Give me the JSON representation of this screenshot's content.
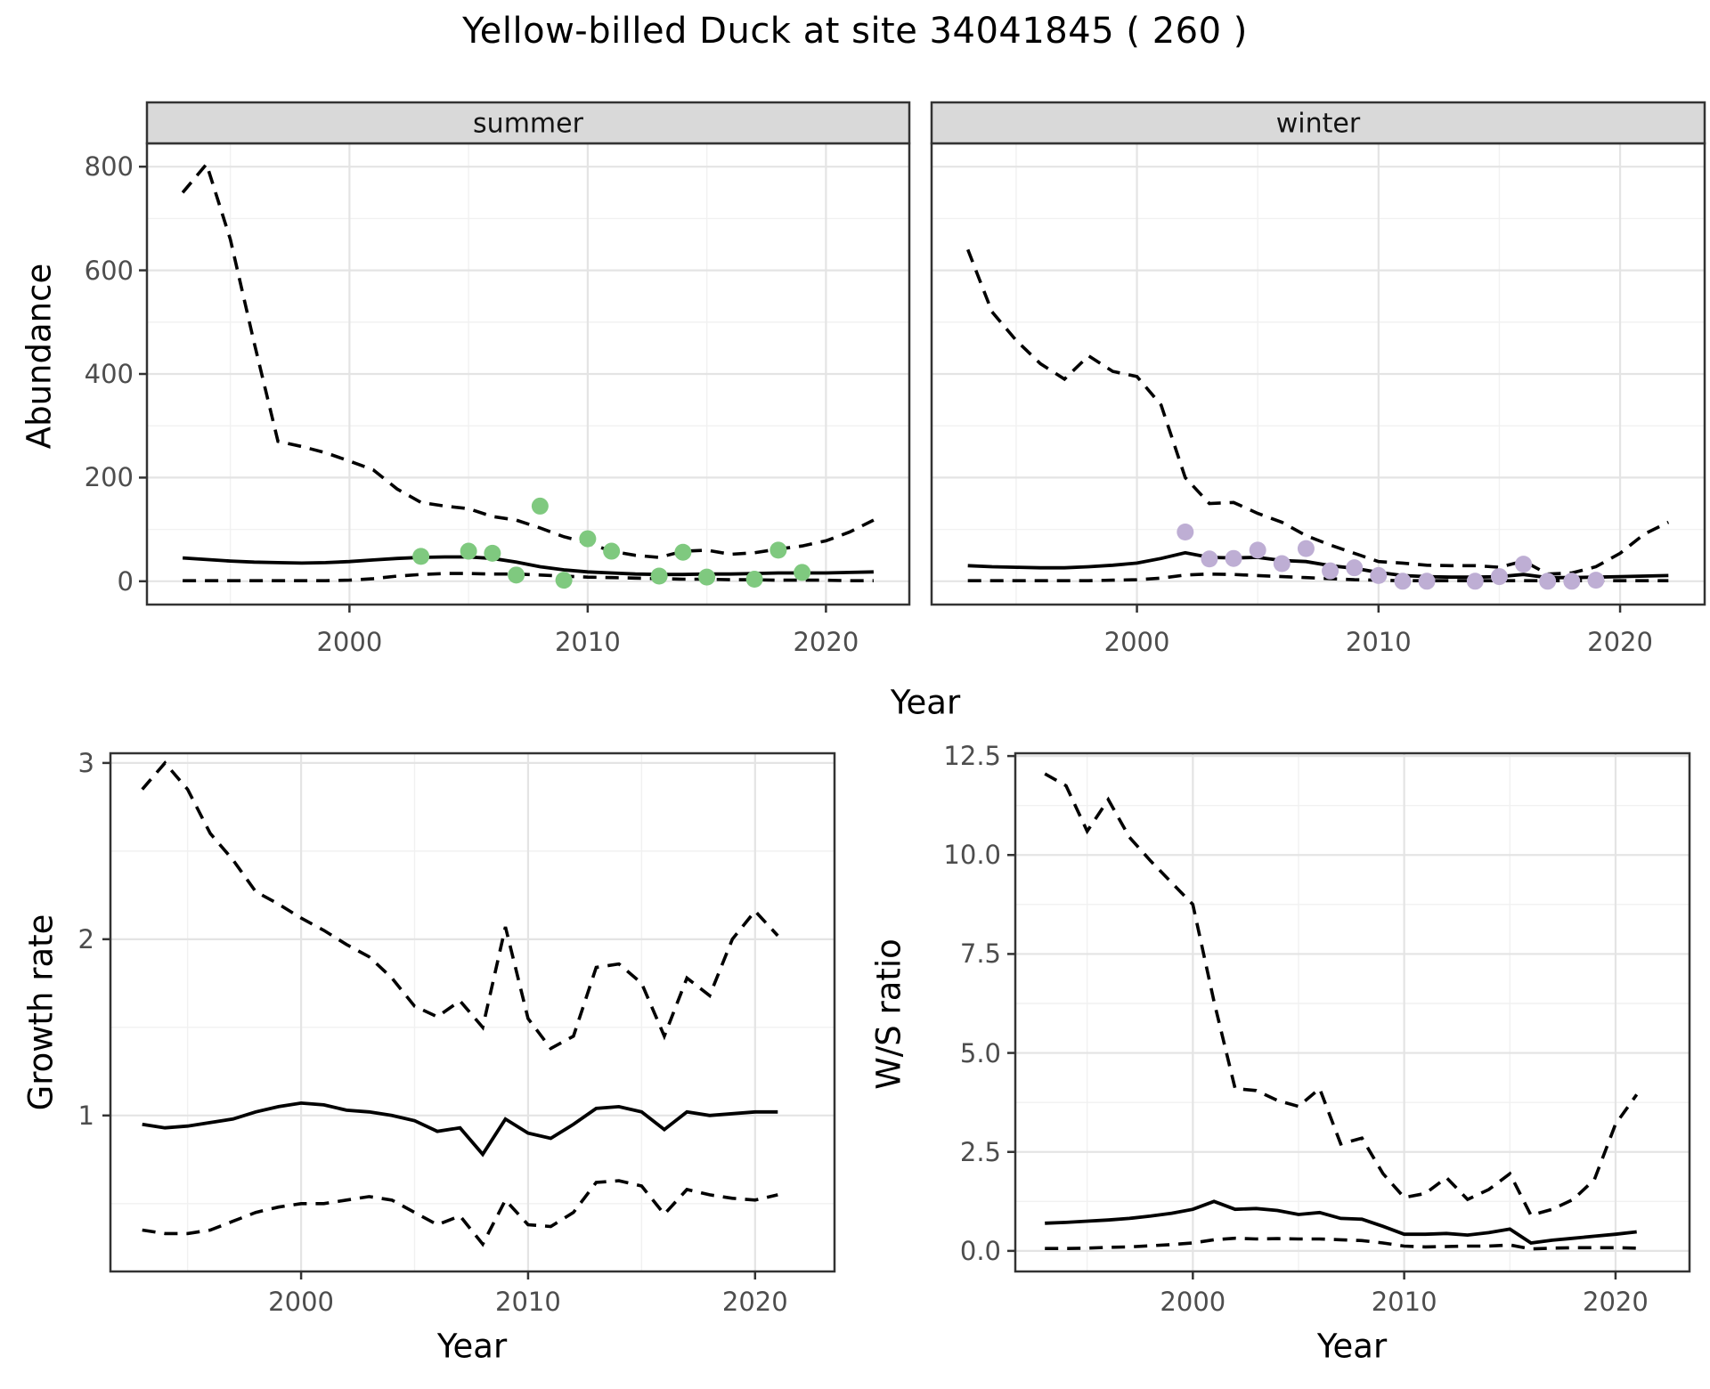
{
  "title": "Yellow-billed Duck at site 34041845 ( 260 )",
  "colors": {
    "summer_points": "#7fc97f",
    "winter_points": "#beaed4",
    "line": "#000000",
    "grid_major": "#e4e4e4",
    "grid_minor": "#f1f1f1",
    "panel_bg": "#ffffff",
    "panel_border": "#333333",
    "strip_bg": "#d9d9d9",
    "tick_mark": "#333333",
    "tick_label": "#4d4d4d",
    "axis_label": "#000000"
  },
  "chart_data": [
    {
      "id": "abundance-summer",
      "type": "line",
      "facet_label": "summer",
      "ylabel": "Abundance",
      "xlabel": "Year",
      "xlim": [
        1991.5,
        2023.5
      ],
      "ylim": [
        -45,
        845
      ],
      "x_ticks": {
        "values": [
          2000,
          2010,
          2020
        ],
        "labels": [
          "2000",
          "2010",
          "2020"
        ]
      },
      "y_ticks": {
        "values": [
          0,
          200,
          400,
          600,
          800
        ],
        "labels": [
          "0",
          "200",
          "400",
          "600",
          "800"
        ]
      },
      "years": [
        1993,
        1994,
        1995,
        1996,
        1997,
        1998,
        1999,
        2000,
        2001,
        2002,
        2003,
        2004,
        2005,
        2006,
        2007,
        2008,
        2009,
        2010,
        2011,
        2012,
        2013,
        2014,
        2015,
        2016,
        2017,
        2018,
        2019,
        2020,
        2021,
        2022
      ],
      "series": [
        {
          "name": "upper_95ci",
          "style": "dashed",
          "values": [
            750,
            805,
            660,
            460,
            270,
            260,
            248,
            232,
            215,
            178,
            152,
            145,
            140,
            125,
            118,
            103,
            86,
            74,
            58,
            50,
            46,
            58,
            60,
            52,
            55,
            62,
            68,
            78,
            95,
            118
          ]
        },
        {
          "name": "median",
          "style": "solid",
          "values": [
            45,
            42,
            39,
            37,
            36,
            35,
            36,
            38,
            41,
            44,
            46,
            47,
            47,
            44,
            37,
            28,
            22,
            18,
            16,
            14,
            13,
            13,
            14,
            14,
            15,
            16,
            16,
            16,
            17,
            18
          ]
        },
        {
          "name": "lower_95ci",
          "style": "dashed",
          "values": [
            1,
            1,
            1,
            1,
            1,
            1,
            1,
            2,
            5,
            10,
            13,
            15,
            15,
            14,
            14,
            12,
            10,
            8,
            7,
            6,
            5,
            4,
            4,
            3,
            3,
            2,
            2,
            2,
            1,
            1
          ]
        }
      ],
      "points": {
        "name": "observed_counts_summer",
        "color": "#7fc97f",
        "years": [
          2003,
          2005,
          2006,
          2007,
          2008,
          2009,
          2010,
          2011,
          2013,
          2014,
          2015,
          2017,
          2018,
          2019
        ],
        "values": [
          48,
          58,
          54,
          12,
          145,
          2,
          82,
          58,
          10,
          56,
          8,
          4,
          60,
          17
        ]
      }
    },
    {
      "id": "abundance-winter",
      "type": "line",
      "facet_label": "winter",
      "ylabel": "Abundance",
      "xlabel": "Year",
      "xlim": [
        1991.5,
        2023.5
      ],
      "ylim": [
        -45,
        845
      ],
      "x_ticks": {
        "values": [
          2000,
          2010,
          2020
        ],
        "labels": [
          "2000",
          "2010",
          "2020"
        ]
      },
      "y_ticks": {
        "values": [
          0,
          200,
          400,
          600,
          800
        ],
        "labels": [
          "0",
          "200",
          "400",
          "600",
          "800"
        ]
      },
      "years": [
        1993,
        1994,
        1995,
        1996,
        1997,
        1998,
        1999,
        2000,
        2001,
        2002,
        2003,
        2004,
        2005,
        2006,
        2007,
        2008,
        2009,
        2010,
        2011,
        2012,
        2013,
        2014,
        2015,
        2016,
        2017,
        2018,
        2019,
        2020,
        2021,
        2022
      ],
      "series": [
        {
          "name": "upper_95ci",
          "style": "dashed",
          "values": [
            640,
            520,
            465,
            420,
            390,
            435,
            405,
            395,
            340,
            200,
            150,
            152,
            131,
            114,
            88,
            70,
            54,
            38,
            35,
            31,
            30,
            30,
            27,
            39,
            14,
            16,
            28,
            54,
            91,
            114
          ]
        },
        {
          "name": "median",
          "style": "solid",
          "values": [
            30,
            28,
            27,
            26,
            26,
            28,
            31,
            35,
            44,
            55,
            46,
            45,
            46,
            40,
            38,
            30,
            25,
            17,
            11,
            9,
            8,
            8,
            9,
            13,
            7,
            7,
            8,
            9,
            10,
            11
          ]
        },
        {
          "name": "lower_95ci",
          "style": "dashed",
          "values": [
            1,
            1,
            1,
            1,
            1,
            1,
            2,
            3,
            6,
            12,
            14,
            13,
            11,
            9,
            7,
            5,
            3,
            2,
            1,
            1,
            1,
            1,
            1,
            1,
            1,
            1,
            1,
            1,
            1,
            1
          ]
        }
      ],
      "points": {
        "name": "observed_counts_winter",
        "color": "#beaed4",
        "years": [
          2002,
          2003,
          2004,
          2005,
          2006,
          2007,
          2008,
          2009,
          2010,
          2011,
          2012,
          2014,
          2015,
          2016,
          2017,
          2018,
          2019
        ],
        "values": [
          95,
          43,
          44,
          60,
          34,
          63,
          20,
          26,
          11,
          0,
          0,
          0,
          9,
          33,
          0,
          0,
          2
        ]
      }
    },
    {
      "id": "growth-rate",
      "type": "line",
      "facet_label": "",
      "ylabel": "Growth rate",
      "xlabel": "Year",
      "xlim": [
        1991.6,
        2023.5
      ],
      "ylim": [
        0.115,
        3.055
      ],
      "x_ticks": {
        "values": [
          2000,
          2010,
          2020
        ],
        "labels": [
          "2000",
          "2010",
          "2020"
        ]
      },
      "y_ticks": {
        "values": [
          1,
          2,
          3
        ],
        "labels": [
          "1",
          "2",
          "3"
        ]
      },
      "years": [
        1993,
        1994,
        1995,
        1996,
        1997,
        1998,
        1999,
        2000,
        2001,
        2002,
        2003,
        2004,
        2005,
        2006,
        2007,
        2008,
        2009,
        2010,
        2011,
        2012,
        2013,
        2014,
        2015,
        2016,
        2017,
        2018,
        2019,
        2020,
        2021
      ],
      "series": [
        {
          "name": "upper_95ci",
          "style": "dashed",
          "values": [
            2.85,
            3.0,
            2.85,
            2.6,
            2.45,
            2.27,
            2.2,
            2.12,
            2.05,
            1.97,
            1.9,
            1.78,
            1.62,
            1.56,
            1.65,
            1.5,
            2.07,
            1.55,
            1.38,
            1.45,
            1.84,
            1.86,
            1.75,
            1.45,
            1.78,
            1.68,
            2.0,
            2.16,
            2.02
          ]
        },
        {
          "name": "median",
          "style": "solid",
          "values": [
            0.95,
            0.93,
            0.94,
            0.96,
            0.98,
            1.02,
            1.05,
            1.07,
            1.06,
            1.03,
            1.02,
            1.0,
            0.97,
            0.91,
            0.93,
            0.78,
            0.98,
            0.9,
            0.87,
            0.95,
            1.04,
            1.05,
            1.02,
            0.92,
            1.02,
            1.0,
            1.01,
            1.02,
            1.02
          ]
        },
        {
          "name": "lower_95ci",
          "style": "dashed",
          "values": [
            0.35,
            0.33,
            0.33,
            0.35,
            0.4,
            0.45,
            0.48,
            0.5,
            0.5,
            0.52,
            0.54,
            0.52,
            0.45,
            0.38,
            0.43,
            0.27,
            0.52,
            0.38,
            0.37,
            0.45,
            0.62,
            0.63,
            0.6,
            0.44,
            0.58,
            0.55,
            0.53,
            0.52,
            0.55
          ]
        }
      ],
      "points": null
    },
    {
      "id": "ws-ratio",
      "type": "line",
      "facet_label": "",
      "ylabel": "W/S ratio",
      "xlabel": "Year",
      "xlim": [
        1991.6,
        2023.5
      ],
      "ylim": [
        -0.52,
        12.57
      ],
      "x_ticks": {
        "values": [
          2000,
          2010,
          2020
        ],
        "labels": [
          "2000",
          "2010",
          "2020"
        ]
      },
      "y_ticks": {
        "values": [
          0,
          2.5,
          5,
          7.5,
          10,
          12.5
        ],
        "labels": [
          "0.0",
          "2.5",
          "5.0",
          "7.5",
          "10.0",
          "12.5"
        ]
      },
      "years": [
        1993,
        1994,
        1995,
        1996,
        1997,
        1998,
        1999,
        2000,
        2001,
        2002,
        2003,
        2004,
        2005,
        2006,
        2007,
        2008,
        2009,
        2010,
        2011,
        2012,
        2013,
        2014,
        2015,
        2016,
        2017,
        2018,
        2019,
        2020,
        2021
      ],
      "series": [
        {
          "name": "upper_95ci",
          "style": "dashed",
          "values": [
            12.05,
            11.75,
            10.6,
            11.4,
            10.45,
            9.85,
            9.3,
            8.75,
            6.3,
            4.1,
            4.05,
            3.8,
            3.65,
            4.1,
            2.7,
            2.85,
            1.95,
            1.35,
            1.45,
            1.85,
            1.3,
            1.55,
            1.95,
            0.9,
            1.05,
            1.3,
            1.8,
            3.2,
            3.95
          ]
        },
        {
          "name": "median",
          "style": "solid",
          "values": [
            0.7,
            0.72,
            0.75,
            0.78,
            0.82,
            0.88,
            0.95,
            1.05,
            1.25,
            1.05,
            1.07,
            1.02,
            0.92,
            0.97,
            0.82,
            0.8,
            0.62,
            0.42,
            0.42,
            0.44,
            0.4,
            0.46,
            0.55,
            0.2,
            0.27,
            0.32,
            0.37,
            0.42,
            0.48
          ]
        },
        {
          "name": "lower_95ci",
          "style": "dashed",
          "values": [
            0.06,
            0.06,
            0.07,
            0.09,
            0.1,
            0.13,
            0.16,
            0.2,
            0.28,
            0.32,
            0.3,
            0.31,
            0.3,
            0.3,
            0.28,
            0.26,
            0.2,
            0.12,
            0.1,
            0.11,
            0.12,
            0.12,
            0.15,
            0.05,
            0.07,
            0.08,
            0.08,
            0.08,
            0.07
          ]
        }
      ],
      "points": null
    }
  ]
}
